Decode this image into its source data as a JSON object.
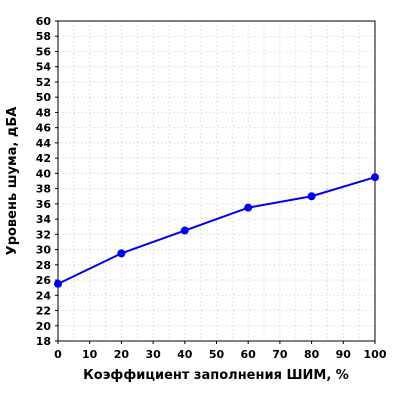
{
  "chart_data": {
    "type": "line",
    "title": "",
    "xlabel": "Коэффициент заполнения ШИМ, %",
    "ylabel": "Уровень шума, дБА",
    "xlim": [
      0,
      100
    ],
    "ylim": [
      18,
      60
    ],
    "xticks": [
      0,
      10,
      20,
      30,
      40,
      50,
      60,
      70,
      80,
      90,
      100
    ],
    "yticks": [
      18,
      20,
      22,
      24,
      26,
      28,
      30,
      32,
      34,
      36,
      38,
      40,
      42,
      44,
      46,
      48,
      50,
      52,
      54,
      56,
      58,
      60
    ],
    "grid": true,
    "legend": "none",
    "series": [
      {
        "color": "#0000ee",
        "x": [
          0,
          20,
          40,
          60,
          80,
          100
        ],
        "y": [
          25.5,
          29.5,
          32.5,
          35.5,
          37,
          39.5
        ]
      }
    ]
  }
}
